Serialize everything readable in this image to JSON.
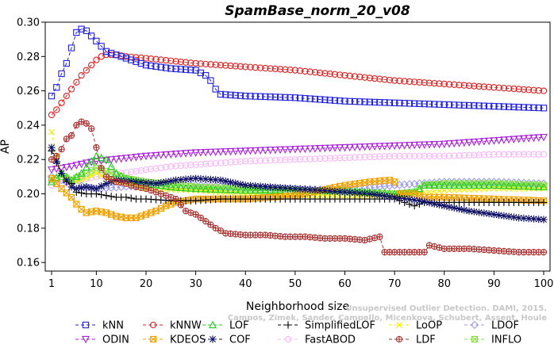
{
  "chart_data": {
    "type": "line",
    "title": "SpamBase_norm_20_v08",
    "xlabel": "Neighborhood size",
    "ylabel": "AP",
    "xlim": [
      1,
      100
    ],
    "ylim": [
      0.155,
      0.3
    ],
    "xticks": [
      1,
      10,
      20,
      30,
      40,
      50,
      60,
      70,
      80,
      90,
      100
    ],
    "yticks": [
      0.16,
      0.18,
      0.2,
      0.22,
      0.24,
      0.26,
      0.28,
      0.3
    ],
    "ytick_labels": [
      "0.16",
      "0.18",
      "0.20",
      "0.22",
      "0.24",
      "0.26",
      "0.28",
      "0.30"
    ],
    "grid": false,
    "legend_position": "bottom",
    "series": [
      {
        "name": "kNN",
        "color": "#2222dd",
        "marker": "square",
        "points": [
          [
            1,
            0.257
          ],
          [
            2,
            0.262
          ],
          [
            3,
            0.27
          ],
          [
            4,
            0.276
          ],
          [
            5,
            0.285
          ],
          [
            6,
            0.294
          ],
          [
            7,
            0.296
          ],
          [
            8,
            0.295
          ],
          [
            9,
            0.292
          ],
          [
            10,
            0.289
          ],
          [
            12,
            0.283
          ],
          [
            14,
            0.281
          ],
          [
            16,
            0.279
          ],
          [
            18,
            0.277
          ],
          [
            20,
            0.275
          ],
          [
            25,
            0.273
          ],
          [
            30,
            0.272
          ],
          [
            32,
            0.269
          ],
          [
            33,
            0.266
          ],
          [
            34,
            0.261
          ],
          [
            35,
            0.258
          ],
          [
            40,
            0.257
          ],
          [
            50,
            0.256
          ],
          [
            60,
            0.254
          ],
          [
            70,
            0.253
          ],
          [
            80,
            0.252
          ],
          [
            90,
            0.251
          ],
          [
            100,
            0.25
          ]
        ]
      },
      {
        "name": "kNNW",
        "color": "#dd2222",
        "marker": "circle",
        "points": [
          [
            1,
            0.246
          ],
          [
            2,
            0.249
          ],
          [
            3,
            0.253
          ],
          [
            4,
            0.257
          ],
          [
            5,
            0.261
          ],
          [
            6,
            0.265
          ],
          [
            7,
            0.269
          ],
          [
            8,
            0.272
          ],
          [
            9,
            0.275
          ],
          [
            10,
            0.278
          ],
          [
            11,
            0.28
          ],
          [
            12,
            0.281
          ],
          [
            14,
            0.281
          ],
          [
            16,
            0.28
          ],
          [
            20,
            0.279
          ],
          [
            30,
            0.276
          ],
          [
            40,
            0.274
          ],
          [
            50,
            0.272
          ],
          [
            60,
            0.269
          ],
          [
            70,
            0.266
          ],
          [
            80,
            0.264
          ],
          [
            90,
            0.262
          ],
          [
            100,
            0.26
          ]
        ]
      },
      {
        "name": "LOF",
        "color": "#22cc22",
        "marker": "triangle-up",
        "points": [
          [
            1,
            0.207
          ],
          [
            3,
            0.212
          ],
          [
            5,
            0.208
          ],
          [
            7,
            0.212
          ],
          [
            9,
            0.219
          ],
          [
            10,
            0.222
          ],
          [
            12,
            0.22
          ],
          [
            14,
            0.212
          ],
          [
            16,
            0.209
          ],
          [
            20,
            0.206
          ],
          [
            25,
            0.204
          ],
          [
            30,
            0.203
          ],
          [
            40,
            0.202
          ],
          [
            50,
            0.202
          ],
          [
            60,
            0.202
          ],
          [
            65,
            0.201
          ],
          [
            70,
            0.2
          ],
          [
            74,
            0.201
          ],
          [
            76,
            0.205
          ],
          [
            80,
            0.205
          ],
          [
            90,
            0.205
          ],
          [
            100,
            0.204
          ]
        ]
      },
      {
        "name": "SimplifiedLOF",
        "color": "#000000",
        "marker": "plus",
        "points": [
          [
            1,
            0.225
          ],
          [
            2,
            0.218
          ],
          [
            3,
            0.212
          ],
          [
            4,
            0.207
          ],
          [
            5,
            0.206
          ],
          [
            6,
            0.201
          ],
          [
            8,
            0.2
          ],
          [
            10,
            0.2
          ],
          [
            12,
            0.199
          ],
          [
            14,
            0.198
          ],
          [
            16,
            0.198
          ],
          [
            18,
            0.197
          ],
          [
            20,
            0.197
          ],
          [
            25,
            0.196
          ],
          [
            30,
            0.196
          ],
          [
            35,
            0.197
          ],
          [
            40,
            0.197
          ],
          [
            50,
            0.197
          ],
          [
            60,
            0.197
          ],
          [
            70,
            0.197
          ],
          [
            74,
            0.193
          ],
          [
            76,
            0.195
          ],
          [
            80,
            0.195
          ],
          [
            90,
            0.195
          ],
          [
            100,
            0.195
          ]
        ]
      },
      {
        "name": "LoOP",
        "color": "#eeee00",
        "marker": "x",
        "points": [
          [
            1,
            0.236
          ],
          [
            2,
            0.222
          ],
          [
            3,
            0.212
          ],
          [
            5,
            0.206
          ],
          [
            8,
            0.209
          ],
          [
            10,
            0.212
          ],
          [
            12,
            0.209
          ],
          [
            16,
            0.206
          ],
          [
            20,
            0.203
          ],
          [
            30,
            0.202
          ],
          [
            40,
            0.2
          ],
          [
            50,
            0.199
          ],
          [
            60,
            0.199
          ],
          [
            70,
            0.199
          ],
          [
            80,
            0.202
          ],
          [
            90,
            0.203
          ],
          [
            100,
            0.203
          ]
        ]
      },
      {
        "name": "LDOF",
        "color": "#9999ee",
        "marker": "diamond",
        "points": [
          [
            1,
            0.21
          ],
          [
            3,
            0.208
          ],
          [
            5,
            0.206
          ],
          [
            8,
            0.204
          ],
          [
            10,
            0.203
          ],
          [
            15,
            0.204
          ],
          [
            20,
            0.205
          ],
          [
            30,
            0.205
          ],
          [
            40,
            0.204
          ],
          [
            50,
            0.203
          ],
          [
            60,
            0.202
          ],
          [
            70,
            0.205
          ],
          [
            80,
            0.207
          ],
          [
            90,
            0.207
          ],
          [
            100,
            0.206
          ]
        ]
      },
      {
        "name": "ODIN",
        "color": "#aa22dd",
        "marker": "triangle-down",
        "points": [
          [
            1,
            0.214
          ],
          [
            3,
            0.215
          ],
          [
            5,
            0.216
          ],
          [
            8,
            0.218
          ],
          [
            10,
            0.219
          ],
          [
            20,
            0.222
          ],
          [
            30,
            0.224
          ],
          [
            40,
            0.225
          ],
          [
            50,
            0.226
          ],
          [
            60,
            0.227
          ],
          [
            70,
            0.228
          ],
          [
            80,
            0.229
          ],
          [
            90,
            0.231
          ],
          [
            100,
            0.233
          ]
        ]
      },
      {
        "name": "KDEOS",
        "color": "#f0a000",
        "marker": "boxed-x",
        "points": [
          [
            1,
            0.209
          ],
          [
            3,
            0.203
          ],
          [
            5,
            0.198
          ],
          [
            6,
            0.194
          ],
          [
            7,
            0.191
          ],
          [
            8,
            0.189
          ],
          [
            10,
            0.19
          ],
          [
            12,
            0.189
          ],
          [
            14,
            0.187
          ],
          [
            16,
            0.186
          ],
          [
            18,
            0.186
          ],
          [
            20,
            0.188
          ],
          [
            22,
            0.19
          ],
          [
            24,
            0.193
          ],
          [
            26,
            0.195
          ],
          [
            30,
            0.197
          ],
          [
            40,
            0.197
          ],
          [
            50,
            0.199
          ],
          [
            55,
            0.202
          ],
          [
            60,
            0.205
          ],
          [
            65,
            0.207
          ],
          [
            69,
            0.208
          ],
          [
            70,
            0.207
          ],
          [
            71,
            0.2
          ],
          [
            74,
            0.2
          ],
          [
            76,
            0.198
          ],
          [
            80,
            0.198
          ],
          [
            90,
            0.197
          ],
          [
            100,
            0.196
          ]
        ]
      },
      {
        "name": "COF",
        "color": "#111166",
        "marker": "star",
        "points": [
          [
            1,
            0.227
          ],
          [
            2,
            0.219
          ],
          [
            3,
            0.212
          ],
          [
            4,
            0.208
          ],
          [
            5,
            0.204
          ],
          [
            6,
            0.203
          ],
          [
            8,
            0.204
          ],
          [
            10,
            0.203
          ],
          [
            12,
            0.206
          ],
          [
            14,
            0.208
          ],
          [
            18,
            0.207
          ],
          [
            22,
            0.206
          ],
          [
            26,
            0.208
          ],
          [
            30,
            0.209
          ],
          [
            35,
            0.208
          ],
          [
            40,
            0.205
          ],
          [
            45,
            0.204
          ],
          [
            50,
            0.203
          ],
          [
            55,
            0.202
          ],
          [
            60,
            0.201
          ],
          [
            65,
            0.2
          ],
          [
            70,
            0.198
          ],
          [
            75,
            0.196
          ],
          [
            80,
            0.193
          ],
          [
            85,
            0.19
          ],
          [
            90,
            0.188
          ],
          [
            95,
            0.186
          ],
          [
            100,
            0.185
          ]
        ]
      },
      {
        "name": "FastABOD",
        "color": "#f8b8f8",
        "marker": "circle",
        "points": [
          [
            1,
            0.205
          ],
          [
            3,
            0.206
          ],
          [
            5,
            0.207
          ],
          [
            10,
            0.21
          ],
          [
            15,
            0.212
          ],
          [
            20,
            0.214
          ],
          [
            25,
            0.216
          ],
          [
            30,
            0.217
          ],
          [
            40,
            0.219
          ],
          [
            50,
            0.22
          ],
          [
            60,
            0.221
          ],
          [
            70,
            0.222
          ],
          [
            80,
            0.222
          ],
          [
            90,
            0.223
          ],
          [
            100,
            0.223
          ]
        ]
      },
      {
        "name": "LDF",
        "color": "#aa3333",
        "marker": "circle-plus",
        "points": [
          [
            1,
            0.22
          ],
          [
            2,
            0.222
          ],
          [
            3,
            0.226
          ],
          [
            4,
            0.232
          ],
          [
            5,
            0.234
          ],
          [
            6,
            0.24
          ],
          [
            7,
            0.242
          ],
          [
            8,
            0.241
          ],
          [
            9,
            0.238
          ],
          [
            10,
            0.227
          ],
          [
            11,
            0.215
          ],
          [
            12,
            0.21
          ],
          [
            14,
            0.207
          ],
          [
            16,
            0.206
          ],
          [
            18,
            0.204
          ],
          [
            20,
            0.203
          ],
          [
            22,
            0.201
          ],
          [
            24,
            0.199
          ],
          [
            26,
            0.197
          ],
          [
            28,
            0.19
          ],
          [
            30,
            0.188
          ],
          [
            32,
            0.184
          ],
          [
            34,
            0.18
          ],
          [
            36,
            0.177
          ],
          [
            40,
            0.176
          ],
          [
            44,
            0.176
          ],
          [
            48,
            0.175
          ],
          [
            52,
            0.175
          ],
          [
            56,
            0.174
          ],
          [
            60,
            0.174
          ],
          [
            64,
            0.173
          ],
          [
            67,
            0.175
          ],
          [
            68,
            0.166
          ],
          [
            72,
            0.166
          ],
          [
            76,
            0.166
          ],
          [
            77,
            0.17
          ],
          [
            80,
            0.168
          ],
          [
            85,
            0.168
          ],
          [
            90,
            0.167
          ],
          [
            95,
            0.166
          ],
          [
            100,
            0.166
          ]
        ]
      },
      {
        "name": "INFLO",
        "color": "#88dd44",
        "marker": "boxed-x",
        "points": [
          [
            1,
            0.208
          ],
          [
            3,
            0.21
          ],
          [
            5,
            0.208
          ],
          [
            8,
            0.212
          ],
          [
            10,
            0.215
          ],
          [
            12,
            0.213
          ],
          [
            16,
            0.209
          ],
          [
            20,
            0.207
          ],
          [
            30,
            0.204
          ],
          [
            40,
            0.203
          ],
          [
            50,
            0.202
          ],
          [
            60,
            0.201
          ],
          [
            70,
            0.2
          ],
          [
            74,
            0.201
          ],
          [
            76,
            0.205
          ],
          [
            80,
            0.206
          ],
          [
            90,
            0.206
          ],
          [
            100,
            0.205
          ]
        ]
      }
    ],
    "legend_rows": [
      [
        "kNN",
        "kNNW",
        "LOF",
        "SimplifiedLOF",
        "LoOP",
        "LDOF"
      ],
      [
        "ODIN",
        "KDEOS",
        "COF",
        "FastABOD",
        "LDF",
        "INFLO"
      ]
    ]
  },
  "watermark": {
    "line1": "Unsupervised Outlier Detection. DAMI, 2015.",
    "line2": "Campos, Zimek, Sander, Campello, Micenkova, Schubert, Assent, Houle"
  }
}
